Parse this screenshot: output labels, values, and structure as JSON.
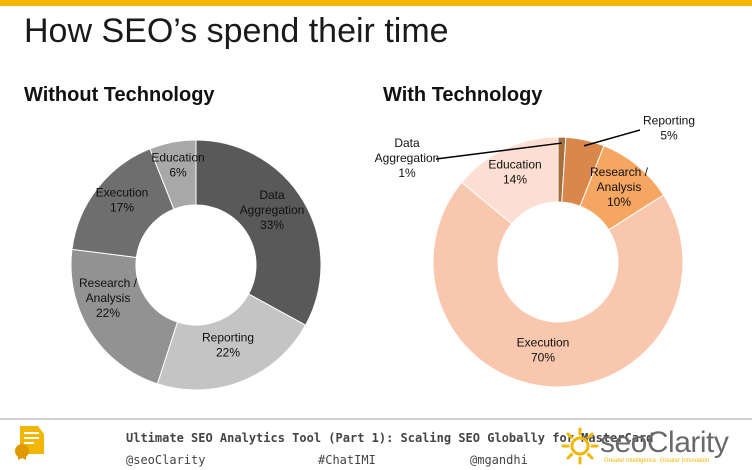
{
  "slide": {
    "title": "How SEO’s spend their time"
  },
  "colors": {
    "accent": "#f2b705"
  },
  "chart_data": [
    {
      "type": "pie",
      "variant": "donut",
      "title": "Without Technology",
      "categories": [
        "Data Aggregation",
        "Reporting",
        "Research / Analysis",
        "Execution",
        "Education"
      ],
      "values": [
        33,
        22,
        22,
        17,
        6
      ],
      "labels": [
        [
          "Data",
          "Aggregation",
          "33%"
        ],
        [
          "Reporting",
          "22%"
        ],
        [
          "Research /",
          "Analysis",
          "22%"
        ],
        [
          "Execution",
          "17%"
        ],
        [
          "Education",
          "6%"
        ]
      ],
      "colors": [
        "#595959",
        "#c4c4c4",
        "#929292",
        "#6e6e6e",
        "#a8a8a8"
      ]
    },
    {
      "type": "pie",
      "variant": "donut",
      "title": "With Technology",
      "categories": [
        "Data Aggregation",
        "Reporting",
        "Research / Analysis",
        "Execution",
        "Education"
      ],
      "values": [
        1,
        5,
        10,
        70,
        14
      ],
      "labels": [
        [
          "Data",
          "Aggregation",
          "1%"
        ],
        [
          "Reporting",
          "5%"
        ],
        [
          "Research /",
          "Analysis",
          "10%"
        ],
        [
          "Execution",
          "70%"
        ],
        [
          "Education",
          "14%"
        ]
      ],
      "colors": [
        "#a86f3c",
        "#d9874a",
        "#f5a660",
        "#f9c6ae",
        "#fcdfd2"
      ]
    }
  ],
  "footer": {
    "title": "Ultimate SEO Analytics Tool (Part 1): Scaling SEO Globally for MasterCard",
    "handle_left": "@seoClarity",
    "hashtag": "#ChatIMI",
    "handle_right": "@mgandhi"
  },
  "brand": {
    "name": "seoClarity",
    "tagline": "Greater Intelligence, Greater Innovation",
    "logo_icon": "sun-icon"
  },
  "footer_icon": "certificate-icon"
}
